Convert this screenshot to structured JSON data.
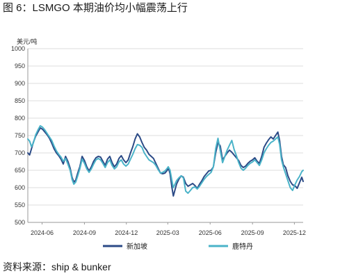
{
  "figure": {
    "title": "图 6：LSMGO 本期油价均小幅震荡上行",
    "source": "资料来源：ship & bunker"
  },
  "colors": {
    "singapore": "#2b4a86",
    "rotterdam": "#4ab3c8",
    "grid": "#dcdcdc",
    "axis": "#9a9a9a"
  },
  "chart_data": {
    "type": "line",
    "ylabel": "美元/吨",
    "ylim": [
      500,
      1000
    ],
    "yticks": [
      500,
      550,
      600,
      650,
      700,
      750,
      800,
      850,
      900,
      950,
      1000
    ],
    "xlim": [
      "2024-05-01",
      "2025-12-20"
    ],
    "xticks": [
      "2024-06",
      "2024-09",
      "2024-12",
      "2025-03",
      "2025-06",
      "2025-09",
      "2025-12"
    ],
    "grid": "horizontal",
    "legend": "bottom",
    "series": [
      {
        "name": "新加坡",
        "key": "singapore",
        "points": [
          [
            "2024-05-01",
            700
          ],
          [
            "2024-05-05",
            694
          ],
          [
            "2024-05-09",
            712
          ],
          [
            "2024-05-13",
            730
          ],
          [
            "2024-05-18",
            748
          ],
          [
            "2024-05-23",
            760
          ],
          [
            "2024-05-28",
            772
          ],
          [
            "2024-06-02",
            768
          ],
          [
            "2024-06-07",
            760
          ],
          [
            "2024-06-12",
            752
          ],
          [
            "2024-06-17",
            742
          ],
          [
            "2024-06-22",
            728
          ],
          [
            "2024-06-27",
            712
          ],
          [
            "2024-07-02",
            700
          ],
          [
            "2024-07-07",
            692
          ],
          [
            "2024-07-12",
            682
          ],
          [
            "2024-07-17",
            668
          ],
          [
            "2024-07-22",
            690
          ],
          [
            "2024-07-27",
            676
          ],
          [
            "2024-08-01",
            656
          ],
          [
            "2024-08-05",
            630
          ],
          [
            "2024-08-09",
            616
          ],
          [
            "2024-08-13",
            622
          ],
          [
            "2024-08-17",
            640
          ],
          [
            "2024-08-22",
            660
          ],
          [
            "2024-08-27",
            690
          ],
          [
            "2024-09-01",
            678
          ],
          [
            "2024-09-06",
            660
          ],
          [
            "2024-09-11",
            648
          ],
          [
            "2024-09-16",
            660
          ],
          [
            "2024-09-21",
            676
          ],
          [
            "2024-09-26",
            686
          ],
          [
            "2024-10-01",
            690
          ],
          [
            "2024-10-06",
            688
          ],
          [
            "2024-10-11",
            676
          ],
          [
            "2024-10-16",
            664
          ],
          [
            "2024-10-21",
            682
          ],
          [
            "2024-10-26",
            690
          ],
          [
            "2024-10-31",
            672
          ],
          [
            "2024-11-05",
            660
          ],
          [
            "2024-11-10",
            668
          ],
          [
            "2024-11-15",
            684
          ],
          [
            "2024-11-20",
            692
          ],
          [
            "2024-11-25",
            680
          ],
          [
            "2024-11-30",
            672
          ],
          [
            "2024-12-05",
            680
          ],
          [
            "2024-12-10",
            700
          ],
          [
            "2024-12-15",
            718
          ],
          [
            "2024-12-20",
            740
          ],
          [
            "2024-12-25",
            755
          ],
          [
            "2024-12-30",
            746
          ],
          [
            "2025-01-04",
            730
          ],
          [
            "2025-01-09",
            716
          ],
          [
            "2025-01-14",
            708
          ],
          [
            "2025-01-19",
            696
          ],
          [
            "2025-01-24",
            690
          ],
          [
            "2025-01-29",
            684
          ],
          [
            "2025-02-03",
            670
          ],
          [
            "2025-02-08",
            656
          ],
          [
            "2025-02-13",
            642
          ],
          [
            "2025-02-18",
            640
          ],
          [
            "2025-02-23",
            642
          ],
          [
            "2025-02-28",
            650
          ],
          [
            "2025-03-02",
            658
          ],
          [
            "2025-03-06",
            640
          ],
          [
            "2025-03-10",
            600
          ],
          [
            "2025-03-13",
            576
          ],
          [
            "2025-03-16",
            590
          ],
          [
            "2025-03-20",
            610
          ],
          [
            "2025-03-25",
            624
          ],
          [
            "2025-03-30",
            634
          ],
          [
            "2025-04-04",
            630
          ],
          [
            "2025-04-09",
            612
          ],
          [
            "2025-04-14",
            604
          ],
          [
            "2025-04-19",
            608
          ],
          [
            "2025-04-24",
            612
          ],
          [
            "2025-04-29",
            606
          ],
          [
            "2025-05-04",
            598
          ],
          [
            "2025-05-09",
            610
          ],
          [
            "2025-05-14",
            620
          ],
          [
            "2025-05-19",
            632
          ],
          [
            "2025-05-24",
            640
          ],
          [
            "2025-05-29",
            648
          ],
          [
            "2025-06-03",
            650
          ],
          [
            "2025-06-08",
            660
          ],
          [
            "2025-06-13",
            700
          ],
          [
            "2025-06-18",
            730
          ],
          [
            "2025-06-23",
            720
          ],
          [
            "2025-06-28",
            680
          ],
          [
            "2025-07-03",
            690
          ],
          [
            "2025-07-08",
            700
          ],
          [
            "2025-07-13",
            708
          ],
          [
            "2025-07-18",
            702
          ],
          [
            "2025-07-23",
            694
          ],
          [
            "2025-07-28",
            686
          ],
          [
            "2025-08-02",
            678
          ],
          [
            "2025-08-07",
            664
          ],
          [
            "2025-08-12",
            658
          ],
          [
            "2025-08-17",
            662
          ],
          [
            "2025-08-22",
            670
          ],
          [
            "2025-08-27",
            676
          ],
          [
            "2025-09-01",
            680
          ],
          [
            "2025-09-06",
            686
          ],
          [
            "2025-09-11",
            676
          ],
          [
            "2025-09-16",
            670
          ],
          [
            "2025-09-21",
            690
          ],
          [
            "2025-09-26",
            716
          ],
          [
            "2025-10-01",
            728
          ],
          [
            "2025-10-06",
            738
          ],
          [
            "2025-10-11",
            746
          ],
          [
            "2025-10-16",
            740
          ],
          [
            "2025-10-21",
            750
          ],
          [
            "2025-10-26",
            760
          ],
          [
            "2025-10-30",
            735
          ],
          [
            "2025-11-03",
            690
          ],
          [
            "2025-11-07",
            666
          ],
          [
            "2025-11-12",
            658
          ],
          [
            "2025-11-17",
            634
          ],
          [
            "2025-11-22",
            618
          ],
          [
            "2025-11-27",
            608
          ],
          [
            "2025-12-02",
            606
          ],
          [
            "2025-12-07",
            598
          ],
          [
            "2025-12-12",
            614
          ],
          [
            "2025-12-17",
            630
          ],
          [
            "2025-12-20",
            618
          ]
        ]
      },
      {
        "name": "鹿特丹",
        "key": "rotterdam",
        "points": [
          [
            "2024-05-01",
            740
          ],
          [
            "2024-05-05",
            734
          ],
          [
            "2024-05-09",
            718
          ],
          [
            "2024-05-13",
            728
          ],
          [
            "2024-05-18",
            752
          ],
          [
            "2024-05-23",
            766
          ],
          [
            "2024-05-28",
            778
          ],
          [
            "2024-06-02",
            774
          ],
          [
            "2024-06-07",
            766
          ],
          [
            "2024-06-12",
            756
          ],
          [
            "2024-06-17",
            746
          ],
          [
            "2024-06-22",
            736
          ],
          [
            "2024-06-27",
            720
          ],
          [
            "2024-07-02",
            706
          ],
          [
            "2024-07-07",
            696
          ],
          [
            "2024-07-12",
            688
          ],
          [
            "2024-07-17",
            676
          ],
          [
            "2024-07-22",
            684
          ],
          [
            "2024-07-27",
            668
          ],
          [
            "2024-08-01",
            650
          ],
          [
            "2024-08-05",
            624
          ],
          [
            "2024-08-09",
            610
          ],
          [
            "2024-08-13",
            616
          ],
          [
            "2024-08-17",
            632
          ],
          [
            "2024-08-22",
            654
          ],
          [
            "2024-08-27",
            682
          ],
          [
            "2024-09-01",
            670
          ],
          [
            "2024-09-06",
            654
          ],
          [
            "2024-09-11",
            644
          ],
          [
            "2024-09-16",
            654
          ],
          [
            "2024-09-21",
            668
          ],
          [
            "2024-09-26",
            680
          ],
          [
            "2024-10-01",
            684
          ],
          [
            "2024-10-06",
            680
          ],
          [
            "2024-10-11",
            670
          ],
          [
            "2024-10-16",
            658
          ],
          [
            "2024-10-21",
            672
          ],
          [
            "2024-10-26",
            680
          ],
          [
            "2024-10-31",
            664
          ],
          [
            "2024-11-05",
            654
          ],
          [
            "2024-11-10",
            660
          ],
          [
            "2024-11-15",
            674
          ],
          [
            "2024-11-20",
            680
          ],
          [
            "2024-11-25",
            668
          ],
          [
            "2024-11-30",
            662
          ],
          [
            "2024-12-05",
            668
          ],
          [
            "2024-12-10",
            682
          ],
          [
            "2024-12-15",
            696
          ],
          [
            "2024-12-20",
            712
          ],
          [
            "2024-12-25",
            724
          ],
          [
            "2024-12-30",
            722
          ],
          [
            "2025-01-04",
            716
          ],
          [
            "2025-01-09",
            700
          ],
          [
            "2025-01-14",
            690
          ],
          [
            "2025-01-19",
            680
          ],
          [
            "2025-01-24",
            676
          ],
          [
            "2025-01-29",
            672
          ],
          [
            "2025-02-03",
            664
          ],
          [
            "2025-02-08",
            652
          ],
          [
            "2025-02-13",
            642
          ],
          [
            "2025-02-18",
            644
          ],
          [
            "2025-02-23",
            648
          ],
          [
            "2025-02-28",
            656
          ],
          [
            "2025-03-02",
            660
          ],
          [
            "2025-03-06",
            650
          ],
          [
            "2025-03-10",
            620
          ],
          [
            "2025-03-13",
            600
          ],
          [
            "2025-03-16",
            608
          ],
          [
            "2025-03-20",
            620
          ],
          [
            "2025-03-25",
            628
          ],
          [
            "2025-03-30",
            634
          ],
          [
            "2025-04-04",
            628
          ],
          [
            "2025-04-09",
            590
          ],
          [
            "2025-04-14",
            584
          ],
          [
            "2025-04-19",
            592
          ],
          [
            "2025-04-24",
            600
          ],
          [
            "2025-04-29",
            602
          ],
          [
            "2025-05-04",
            596
          ],
          [
            "2025-05-09",
            604
          ],
          [
            "2025-05-14",
            614
          ],
          [
            "2025-05-19",
            624
          ],
          [
            "2025-05-24",
            632
          ],
          [
            "2025-05-29",
            638
          ],
          [
            "2025-06-03",
            644
          ],
          [
            "2025-06-08",
            660
          ],
          [
            "2025-06-13",
            712
          ],
          [
            "2025-06-18",
            742
          ],
          [
            "2025-06-23",
            706
          ],
          [
            "2025-06-28",
            672
          ],
          [
            "2025-07-03",
            690
          ],
          [
            "2025-07-08",
            708
          ],
          [
            "2025-07-13",
            722
          ],
          [
            "2025-07-18",
            736
          ],
          [
            "2025-07-23",
            710
          ],
          [
            "2025-07-28",
            692
          ],
          [
            "2025-08-02",
            672
          ],
          [
            "2025-08-07",
            656
          ],
          [
            "2025-08-12",
            650
          ],
          [
            "2025-08-17",
            656
          ],
          [
            "2025-08-22",
            664
          ],
          [
            "2025-08-27",
            670
          ],
          [
            "2025-09-01",
            674
          ],
          [
            "2025-09-06",
            680
          ],
          [
            "2025-09-11",
            672
          ],
          [
            "2025-09-16",
            664
          ],
          [
            "2025-09-21",
            680
          ],
          [
            "2025-09-26",
            700
          ],
          [
            "2025-10-01",
            712
          ],
          [
            "2025-10-06",
            722
          ],
          [
            "2025-10-11",
            730
          ],
          [
            "2025-10-16",
            734
          ],
          [
            "2025-10-21",
            740
          ],
          [
            "2025-10-26",
            746
          ],
          [
            "2025-10-30",
            724
          ],
          [
            "2025-11-03",
            680
          ],
          [
            "2025-11-07",
            660
          ],
          [
            "2025-11-12",
            640
          ],
          [
            "2025-11-17",
            620
          ],
          [
            "2025-11-22",
            600
          ],
          [
            "2025-11-27",
            592
          ],
          [
            "2025-12-02",
            608
          ],
          [
            "2025-12-07",
            622
          ],
          [
            "2025-12-12",
            632
          ],
          [
            "2025-12-17",
            646
          ],
          [
            "2025-12-20",
            650
          ]
        ]
      }
    ]
  }
}
